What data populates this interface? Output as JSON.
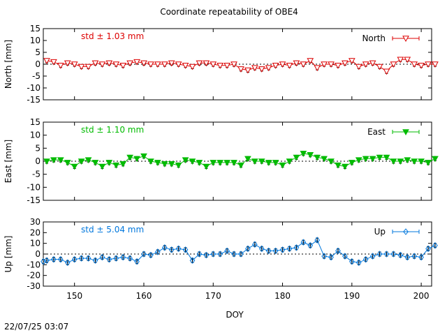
{
  "timestamp": "22/07/25 03:07",
  "chart_data": {
    "type": "line",
    "title": "Coordinate repeatability of OBE4",
    "xlabel": "DOY",
    "xlim": [
      145.5,
      201.5
    ],
    "xticks": [
      150,
      160,
      170,
      180,
      190,
      200
    ],
    "panels": [
      {
        "name": "North",
        "ylabel": "North [mm]",
        "ylim": [
          -15,
          15
        ],
        "yticks": [
          -15,
          -10,
          -5,
          0,
          5,
          10,
          15
        ],
        "std_label": "std ± 1.03 mm",
        "legend": "North",
        "color": "#dd0000",
        "marker": "triangle-down-open",
        "x": [
          146,
          147,
          148,
          149,
          150,
          151,
          152,
          153,
          154,
          155,
          156,
          157,
          158,
          159,
          160,
          161,
          162,
          163,
          164,
          165,
          166,
          167,
          168,
          169,
          170,
          171,
          172,
          173,
          174,
          175,
          176,
          177,
          178,
          179,
          180,
          181,
          182,
          183,
          184,
          185,
          186,
          187,
          188,
          189,
          190,
          191,
          192,
          193,
          194,
          195,
          196,
          197,
          198,
          199,
          200,
          201,
          202
        ],
        "values": [
          1.5,
          1.0,
          -0.5,
          0.5,
          0.0,
          -1.0,
          -1.0,
          0.5,
          0.0,
          0.5,
          0.0,
          -0.5,
          0.5,
          1.0,
          0.5,
          0.0,
          0.0,
          0.0,
          0.5,
          0.0,
          -0.5,
          -1.0,
          0.5,
          0.5,
          0.0,
          -0.5,
          -0.5,
          0.0,
          -2.0,
          -2.5,
          -1.5,
          -2.0,
          -1.5,
          -0.5,
          0.0,
          -0.5,
          0.5,
          0.0,
          1.5,
          -1.5,
          0.0,
          0.0,
          -0.5,
          0.5,
          1.5,
          -1.0,
          0.0,
          0.5,
          -1.0,
          -3.0,
          0.0,
          2.0,
          2.0,
          0.0,
          -0.5,
          0.0,
          0.0
        ]
      },
      {
        "name": "East",
        "ylabel": "East [mm]",
        "ylim": [
          -15,
          15
        ],
        "yticks": [
          -15,
          -10,
          -5,
          0,
          5,
          10,
          15
        ],
        "std_label": "std ± 1.10 mm",
        "legend": "East",
        "color": "#00bb00",
        "marker": "triangle-down-filled",
        "x": [
          146,
          147,
          148,
          149,
          150,
          151,
          152,
          153,
          154,
          155,
          156,
          157,
          158,
          159,
          160,
          161,
          162,
          163,
          164,
          165,
          166,
          167,
          168,
          169,
          170,
          171,
          172,
          173,
          174,
          175,
          176,
          177,
          178,
          179,
          180,
          181,
          182,
          183,
          184,
          185,
          186,
          187,
          188,
          189,
          190,
          191,
          192,
          193,
          194,
          195,
          196,
          197,
          198,
          199,
          200,
          201,
          202
        ],
        "values": [
          0.0,
          0.5,
          0.5,
          -0.5,
          -2.0,
          0.0,
          0.5,
          -0.5,
          -2.0,
          -0.5,
          -1.5,
          -1.0,
          1.5,
          1.0,
          2.0,
          0.0,
          -0.5,
          -1.0,
          -1.0,
          -1.5,
          0.5,
          0.0,
          -0.5,
          -2.0,
          -0.5,
          -0.5,
          -0.5,
          -0.5,
          -1.5,
          1.0,
          0.0,
          0.0,
          -0.5,
          -0.5,
          -1.5,
          0.0,
          1.5,
          3.0,
          2.5,
          1.5,
          1.0,
          0.0,
          -1.5,
          -2.0,
          -0.5,
          0.5,
          1.0,
          1.0,
          1.5,
          1.5,
          0.0,
          0.0,
          0.5,
          0.0,
          0.0,
          -0.5,
          1.0
        ]
      },
      {
        "name": "Up",
        "ylabel": "Up [mm]",
        "ylim": [
          -30,
          30
        ],
        "yticks": [
          -30,
          -20,
          -10,
          0,
          10,
          20,
          30
        ],
        "std_label": "std ± 5.04 mm",
        "legend": "Up",
        "color": "#0077dd",
        "marker": "diamond-open",
        "x": [
          145.5,
          146,
          147,
          148,
          149,
          150,
          151,
          152,
          153,
          154,
          155,
          156,
          157,
          158,
          159,
          160,
          161,
          162,
          163,
          164,
          165,
          166,
          167,
          168,
          169,
          170,
          171,
          172,
          173,
          174,
          175,
          176,
          177,
          178,
          179,
          180,
          181,
          182,
          183,
          184,
          185,
          186,
          187,
          188,
          189,
          190,
          191,
          192,
          193,
          194,
          195,
          196,
          197,
          198,
          199,
          200,
          201,
          202
        ],
        "values": [
          -7,
          -6,
          -5,
          -5,
          -8,
          -5,
          -4,
          -4,
          -6,
          -3,
          -5,
          -4,
          -3,
          -4,
          -7,
          0,
          -1,
          2,
          6,
          4,
          5,
          4,
          -6,
          0,
          -1,
          0,
          0,
          3,
          0,
          0,
          5,
          9,
          5,
          3,
          3,
          4,
          5,
          6,
          11,
          8,
          13,
          -2,
          -3,
          3,
          -2,
          -7,
          -8,
          -5,
          -2,
          0,
          0,
          0,
          -1,
          -3,
          -2,
          -3,
          5,
          8
        ]
      }
    ]
  }
}
